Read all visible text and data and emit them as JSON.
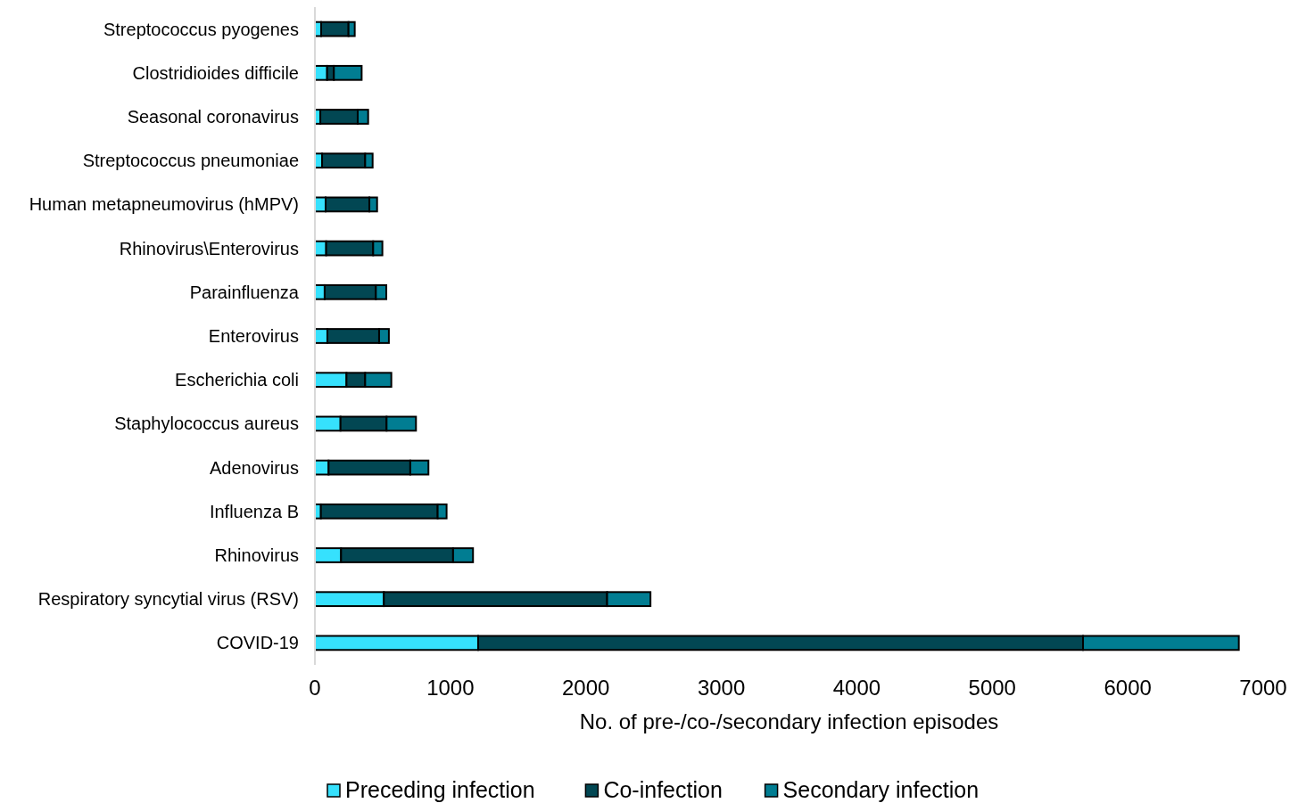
{
  "chart_data": {
    "type": "bar",
    "orientation": "horizontal",
    "stacked": true,
    "xlabel": "No. of pre-/co-/secondary infection episodes",
    "categories": [
      "Streptococcus pyogenes",
      "Clostridioides difficile",
      "Seasonal coronavirus",
      "Streptococcus pneumoniae",
      "Human metapneumovirus (hMPV)",
      "Rhinovirus\\Enterovirus",
      "Parainfluenza",
      "Enterovirus",
      "Escherichia coli",
      "Staphylococcus aureus",
      "Adenovirus",
      "Influenza B",
      "Rhinovirus",
      "Respiratory syncytial virus (RSV)",
      "COVID-19"
    ],
    "series": [
      {
        "name": "Preceding infection",
        "color": "#36e1fd",
        "values": [
          46,
          90,
          40,
          53,
          79,
          83,
          72,
          92,
          233,
          189,
          101,
          44,
          193,
          509,
          1205
        ]
      },
      {
        "name": "Co-infection",
        "color": "#024753",
        "values": [
          202,
          50,
          276,
          318,
          323,
          347,
          378,
          382,
          138,
          340,
          603,
          862,
          827,
          1648,
          4465
        ]
      },
      {
        "name": "Secondary infection",
        "color": "#017d92",
        "values": [
          46,
          205,
          77,
          55,
          57,
          68,
          77,
          72,
          193,
          217,
          134,
          66,
          147,
          320,
          1150
        ]
      }
    ],
    "xlim": [
      0,
      7000
    ],
    "xticks": [
      0,
      1000,
      2000,
      3000,
      4000,
      5000,
      6000,
      7000
    ],
    "grid": false,
    "legend": "bottom"
  }
}
